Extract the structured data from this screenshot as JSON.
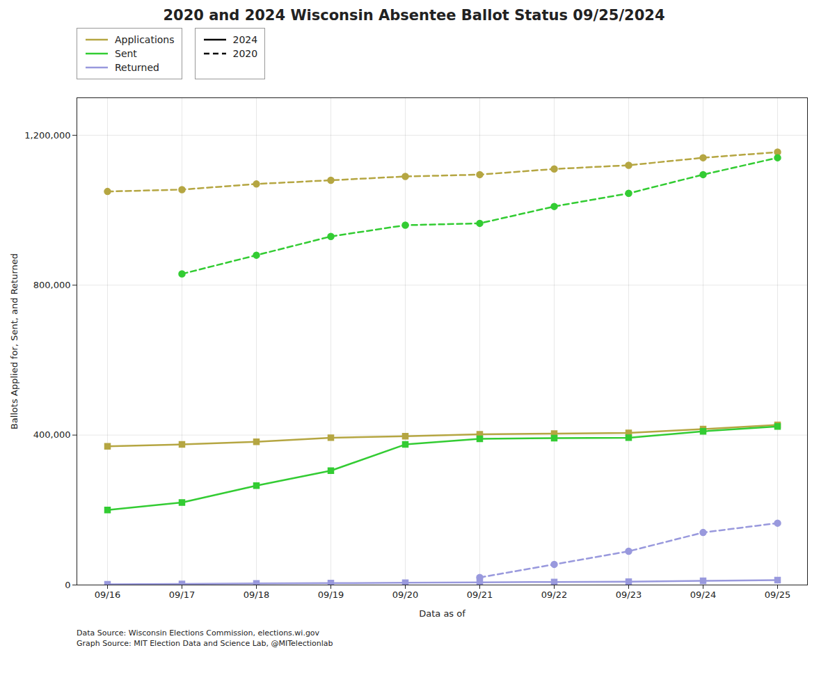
{
  "chart_data": {
    "type": "line",
    "title": "2020 and 2024 Wisconsin Absentee Ballot Status 09/25/2024",
    "xlabel": "Data as of",
    "ylabel": "Ballots Applied for, Sent, and Returned",
    "categories": [
      "09/16",
      "09/17",
      "09/18",
      "09/19",
      "09/20",
      "09/21",
      "09/22",
      "09/23",
      "09/24",
      "09/25"
    ],
    "series": [
      {
        "name": "2024",
        "line_style": "solid",
        "marker": "square",
        "series": [
          {
            "name": "Applications",
            "color": "#b5a642",
            "values": [
              370000,
              375000,
              382000,
              393000,
              397000,
              402000,
              404000,
              406000,
              416000,
              427000
            ]
          },
          {
            "name": "Sent",
            "color": "#33cc33",
            "values": [
              200000,
              220000,
              265000,
              305000,
              375000,
              390000,
              392000,
              393000,
              410000,
              423000
            ]
          },
          {
            "name": "Returned",
            "color": "#9999dd",
            "values": [
              2000,
              3000,
              4000,
              5000,
              6000,
              7000,
              8000,
              9000,
              11000,
              13000
            ]
          }
        ]
      },
      {
        "name": "2020",
        "line_style": "dashed",
        "marker": "circle",
        "series": [
          {
            "name": "Applications",
            "color": "#b5a642",
            "values": [
              1050000,
              1055000,
              1070000,
              1080000,
              1090000,
              1095000,
              1110000,
              1120000,
              1140000,
              1155000
            ]
          },
          {
            "name": "Sent",
            "color": "#33cc33",
            "values": [
              null,
              830000,
              880000,
              930000,
              960000,
              965000,
              1010000,
              1045000,
              1095000,
              1140000
            ]
          },
          {
            "name": "Returned",
            "color": "#9999dd",
            "values": [
              null,
              null,
              null,
              null,
              null,
              20000,
              55000,
              90000,
              140000,
              165000
            ]
          }
        ]
      }
    ],
    "ylim": [
      0,
      1300000
    ],
    "yticks": [
      0,
      {
        "value": 400000,
        "label": "400,000"
      },
      {
        "value": 800000,
        "label": "800,000"
      },
      {
        "value": 1200000,
        "label": "1,200,000"
      }
    ],
    "grid": true,
    "legend": "upper left",
    "annotations": [
      "Data Source: Wisconsin Elections Commission, elections.wi.gov",
      "Graph Source: MIT Election Data and Science Lab, @MITelectionlab"
    ]
  }
}
